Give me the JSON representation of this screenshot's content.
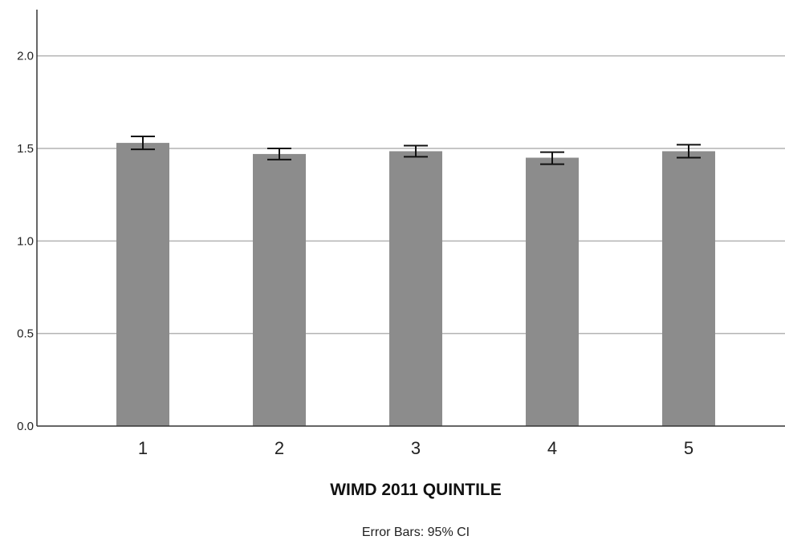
{
  "chart_data": {
    "type": "bar",
    "title": "",
    "xlabel": "WIMD 2011 QUINTILE",
    "ylabel": "",
    "categories": [
      "1",
      "2",
      "3",
      "4",
      "5"
    ],
    "values": [
      1.53,
      1.47,
      1.485,
      1.45,
      1.485
    ],
    "error_bars": {
      "lower": [
        1.495,
        1.44,
        1.455,
        1.415,
        1.45
      ],
      "upper": [
        1.565,
        1.5,
        1.515,
        1.48,
        1.52
      ]
    },
    "ylim": [
      0,
      2.25
    ],
    "yticks": [
      0,
      0.5,
      1.0,
      1.5,
      2.0
    ],
    "ytick_labels": [
      "0.0",
      "0.5",
      "1.0",
      "1.5",
      "2.0"
    ],
    "grid": true,
    "note": "Error Bars: 95% CI",
    "colors": {
      "bar": "#8c8c8c",
      "grid": "#b3b3b3",
      "axis": "#333333",
      "error_bar": "#111111"
    }
  }
}
